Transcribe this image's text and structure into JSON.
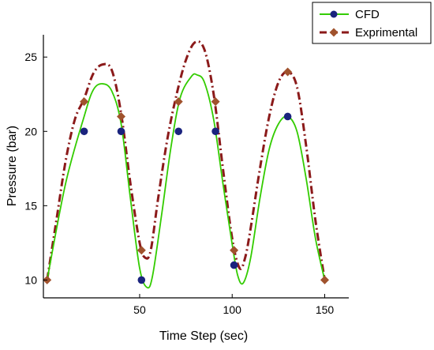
{
  "chart_data": {
    "type": "line",
    "title": "",
    "xlabel": "Time Step (sec)",
    "ylabel": "Pressure (bar)",
    "xlim": [
      -2,
      163
    ],
    "ylim": [
      8.8,
      26.5
    ],
    "xticks": [
      50,
      100,
      150
    ],
    "yticks": [
      10,
      15,
      20,
      25
    ],
    "grid": false,
    "legend_position": "top-right",
    "series": [
      {
        "name": "CFD",
        "color": "#33cc00",
        "marker_color": "#1a237e",
        "marker": "circle",
        "line_style": "solid",
        "markers": [
          [
            20,
            20
          ],
          [
            40,
            20
          ],
          [
            51,
            10
          ],
          [
            71,
            20
          ],
          [
            91,
            20
          ],
          [
            101,
            11
          ],
          [
            130,
            21
          ]
        ],
        "curve": [
          [
            0,
            10
          ],
          [
            10,
            16.5
          ],
          [
            20,
            21
          ],
          [
            25,
            22.8
          ],
          [
            30,
            23.2
          ],
          [
            35,
            22.7
          ],
          [
            40,
            20.5
          ],
          [
            45,
            15.5
          ],
          [
            50,
            10.8
          ],
          [
            54,
            9.5
          ],
          [
            57,
            10.3
          ],
          [
            62,
            14.5
          ],
          [
            67,
            19
          ],
          [
            72,
            22.3
          ],
          [
            78,
            23.7
          ],
          [
            81,
            23.8
          ],
          [
            85,
            23.3
          ],
          [
            90,
            20.8
          ],
          [
            95,
            16.5
          ],
          [
            100,
            12.4
          ],
          [
            103,
            10.3
          ],
          [
            106,
            9.8
          ],
          [
            110,
            11.5
          ],
          [
            115,
            15.5
          ],
          [
            120,
            18.8
          ],
          [
            125,
            20.5
          ],
          [
            130,
            21
          ],
          [
            135,
            20
          ],
          [
            140,
            16.8
          ],
          [
            145,
            12.8
          ],
          [
            150,
            10
          ]
        ]
      },
      {
        "name": "Exprimental",
        "color": "#8b1a1a",
        "marker_color": "#a0522d",
        "marker": "diamond",
        "line_style": "dash-dot",
        "markers": [
          [
            0,
            10
          ],
          [
            20,
            22
          ],
          [
            40,
            21
          ],
          [
            51,
            12
          ],
          [
            71,
            22
          ],
          [
            91,
            22
          ],
          [
            101,
            12
          ],
          [
            130,
            24
          ],
          [
            150,
            10
          ]
        ],
        "curve": [
          [
            0,
            10
          ],
          [
            5,
            14
          ],
          [
            10,
            18
          ],
          [
            15,
            20.8
          ],
          [
            20,
            22.2
          ],
          [
            25,
            23.9
          ],
          [
            30,
            24.5
          ],
          [
            35,
            24.1
          ],
          [
            40,
            21.2
          ],
          [
            45,
            16.5
          ],
          [
            50,
            12.5
          ],
          [
            53,
            11.5
          ],
          [
            56,
            12
          ],
          [
            60,
            15.5
          ],
          [
            65,
            19.5
          ],
          [
            70,
            22.5
          ],
          [
            75,
            24.8
          ],
          [
            80,
            26
          ],
          [
            85,
            25.5
          ],
          [
            90,
            22.5
          ],
          [
            95,
            17.5
          ],
          [
            100,
            12.8
          ],
          [
            104,
            10.8
          ],
          [
            107,
            11.5
          ],
          [
            110,
            13.5
          ],
          [
            115,
            17.5
          ],
          [
            120,
            21
          ],
          [
            125,
            23.3
          ],
          [
            130,
            24
          ],
          [
            135,
            23
          ],
          [
            140,
            19
          ],
          [
            145,
            14
          ],
          [
            150,
            10
          ]
        ]
      }
    ]
  },
  "legend": {
    "cfd_label": "CFD",
    "exp_label": "Exprimental"
  }
}
